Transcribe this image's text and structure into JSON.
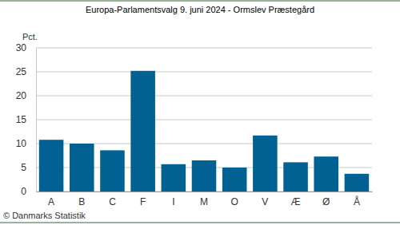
{
  "chart_data": {
    "type": "bar",
    "title": "Europa-Parlamentsvalg 9. juni 2024 - Ormslev Præstegård",
    "y_label": "Pct.",
    "annotations": [
      "© Danmarks Statistik"
    ],
    "categories": [
      "A",
      "B",
      "C",
      "F",
      "I",
      "M",
      "O",
      "V",
      "Æ",
      "Ø",
      "Å"
    ],
    "values": [
      10.8,
      10.0,
      8.6,
      25.2,
      5.7,
      6.5,
      5.0,
      11.7,
      6.1,
      7.3,
      3.7
    ],
    "color": "#006192",
    "ylim": [
      0,
      30
    ],
    "yticks": [
      0,
      5,
      10,
      15,
      20,
      25,
      30
    ],
    "grid": true
  }
}
